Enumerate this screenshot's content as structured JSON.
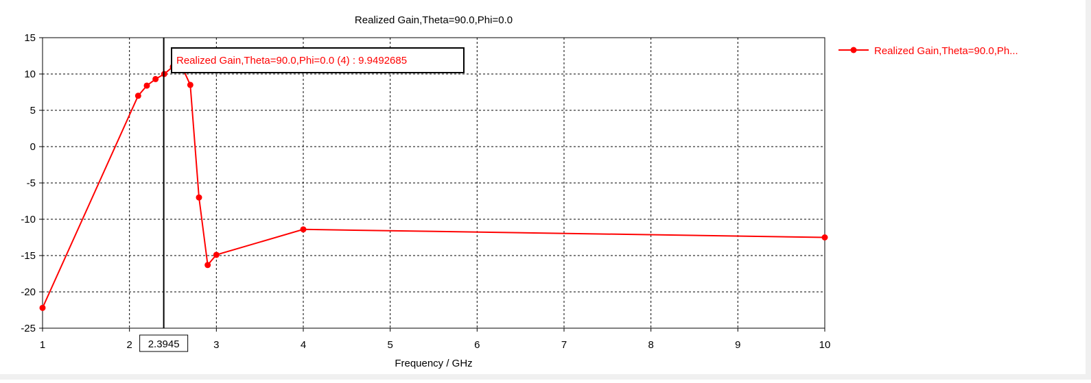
{
  "chart_data": {
    "type": "line",
    "title": "Realized Gain,Theta=90.0,Phi=0.0",
    "xlabel": "Frequency / GHz",
    "ylabel": "",
    "xlim": [
      1,
      10
    ],
    "ylim": [
      -25,
      15
    ],
    "xticks": [
      1,
      2,
      3,
      4,
      5,
      6,
      7,
      8,
      9,
      10
    ],
    "yticks": [
      15,
      10,
      5,
      0,
      -5,
      -10,
      -15,
      -20,
      -25
    ],
    "grid": true,
    "grid_style": "dotted",
    "legend_position": "right",
    "series": [
      {
        "name": "Realized Gain,Theta=90.0,Ph...",
        "color": "#ff0000",
        "marker": "circle",
        "x": [
          1,
          2.1,
          2.2,
          2.3,
          2.4,
          2.5,
          2.6,
          2.7,
          2.8,
          2.9,
          3,
          4,
          10
        ],
        "y": [
          -22.2,
          7.0,
          8.4,
          9.3,
          10.0,
          11.0,
          11.1,
          8.5,
          -7.0,
          -16.3,
          -14.9,
          -11.4,
          -12.5
        ]
      }
    ],
    "cursor": {
      "x": 2.3945,
      "x_label": "2.3945",
      "annotation": "Realized Gain,Theta=90.0,Phi=0.0 (4) : 9.9492685"
    }
  }
}
